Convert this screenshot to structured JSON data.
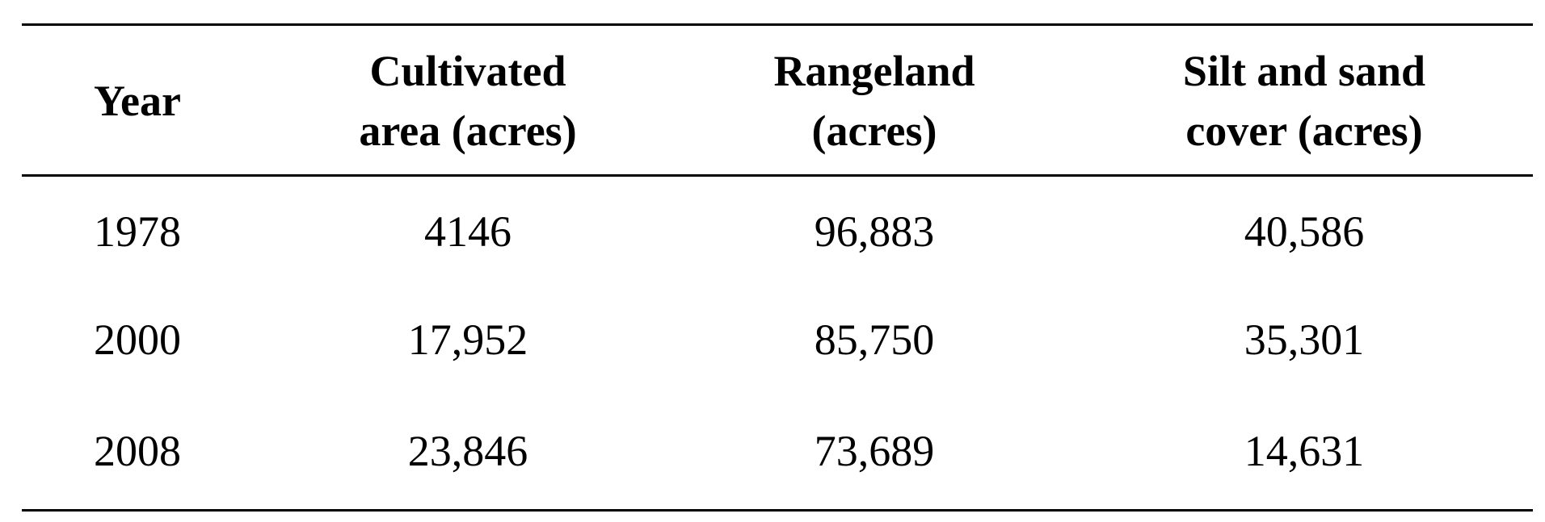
{
  "table": {
    "headers": [
      [
        "Year"
      ],
      [
        "Cultivated",
        "area (acres)"
      ],
      [
        "Rangeland",
        "(acres)"
      ],
      [
        "Silt and sand",
        "cover (acres)"
      ]
    ],
    "rows": [
      [
        "1978",
        "4146",
        "96,883",
        "40,586"
      ],
      [
        "2000",
        "17,952",
        "85,750",
        "35,301"
      ],
      [
        "2008",
        "23,846",
        "73,689",
        "14,631"
      ]
    ]
  }
}
